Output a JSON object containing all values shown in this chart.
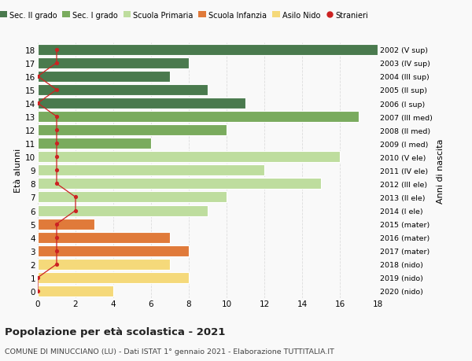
{
  "ages": [
    18,
    17,
    16,
    15,
    14,
    13,
    12,
    11,
    10,
    9,
    8,
    7,
    6,
    5,
    4,
    3,
    2,
    1,
    0
  ],
  "years": [
    "2002 (V sup)",
    "2003 (IV sup)",
    "2004 (III sup)",
    "2005 (II sup)",
    "2006 (I sup)",
    "2007 (III med)",
    "2008 (II med)",
    "2009 (I med)",
    "2010 (V ele)",
    "2011 (IV ele)",
    "2012 (III ele)",
    "2013 (II ele)",
    "2014 (I ele)",
    "2015 (mater)",
    "2016 (mater)",
    "2017 (mater)",
    "2018 (nido)",
    "2019 (nido)",
    "2020 (nido)"
  ],
  "values": [
    18,
    8,
    7,
    9,
    11,
    17,
    10,
    6,
    16,
    12,
    15,
    10,
    9,
    3,
    7,
    8,
    7,
    8,
    4
  ],
  "colors": [
    "#4a7a4e",
    "#4a7a4e",
    "#4a7a4e",
    "#4a7a4e",
    "#4a7a4e",
    "#7aab5e",
    "#7aab5e",
    "#7aab5e",
    "#bedd9e",
    "#bedd9e",
    "#bedd9e",
    "#bedd9e",
    "#bedd9e",
    "#e07a3a",
    "#e07a3a",
    "#e07a3a",
    "#f5d97a",
    "#f5d97a",
    "#f5d97a"
  ],
  "stranieri_x": [
    1,
    1,
    0,
    1,
    0,
    1,
    1,
    1,
    1,
    1,
    1,
    2,
    2,
    1,
    1,
    1,
    1,
    0,
    0
  ],
  "legend_labels": [
    "Sec. II grado",
    "Sec. I grado",
    "Scuola Primaria",
    "Scuola Infanzia",
    "Asilo Nido",
    "Stranieri"
  ],
  "legend_colors": [
    "#4a7a4e",
    "#7aab5e",
    "#bedd9e",
    "#e07a3a",
    "#f5d97a",
    "#cc2222"
  ],
  "title": "Popolazione per età scolastica - 2021",
  "subtitle": "COMUNE DI MINUCCIANO (LU) - Dati ISTAT 1° gennaio 2021 - Elaborazione TUTTITALIA.IT",
  "ylabel_left": "Età alunni",
  "ylabel_right": "Anni di nascita",
  "xlim": [
    0,
    18
  ],
  "ylim": [
    -0.5,
    18.5
  ],
  "bg_color": "#f9f9f9",
  "grid_color": "#dddddd",
  "stranieri_color": "#cc2222",
  "bar_height": 0.82
}
